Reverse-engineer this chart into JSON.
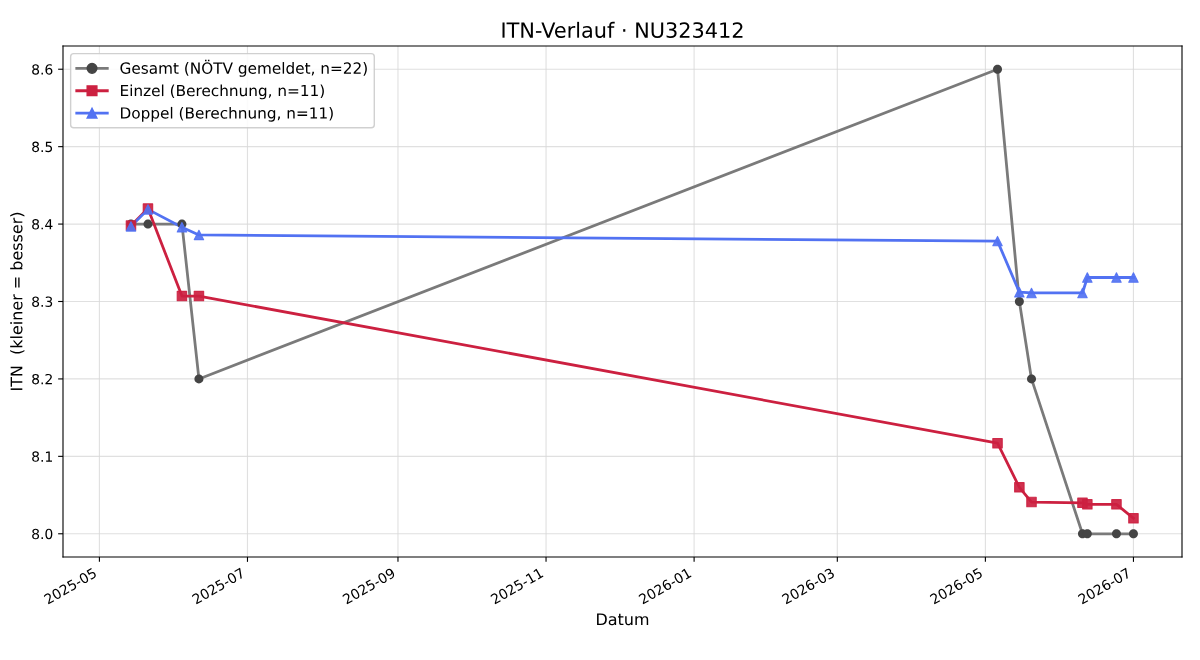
{
  "chart_data": {
    "type": "line",
    "title": "ITN-Verlauf · NU323412",
    "xlabel": "Datum",
    "ylabel": "ITN  (kleiner = besser)",
    "series": [
      {
        "name": "Gesamt (NÖTV gemeldet, n=22)",
        "color": "#7a7a7a",
        "colors": [
          "#444444",
          "#444444",
          "#444444",
          "#444444",
          "#444444",
          "#444444",
          "#444444",
          "#444444",
          "#444444",
          "#444444",
          "#444444"
        ],
        "marker": "circle",
        "x": [
          "2025-05-14",
          "2025-05-21",
          "2025-06-04",
          "2025-06-11",
          "2026-05-06",
          "2026-05-15",
          "2026-05-20",
          "2026-06-10",
          "2026-06-12",
          "2026-06-24",
          "2026-07-01"
        ],
        "values": [
          8.4,
          8.4,
          8.4,
          8.2,
          8.6,
          8.3,
          8.2,
          8.0,
          8.0,
          8.0,
          8.0
        ]
      },
      {
        "name": "Einzel (Berechnung, n=11)",
        "color": "#cc2040",
        "marker": "square",
        "x": [
          "2025-05-14",
          "2025-05-21",
          "2025-06-04",
          "2025-06-11",
          "2026-05-06",
          "2026-05-15",
          "2026-05-20",
          "2026-06-10",
          "2026-06-12",
          "2026-06-24",
          "2026-07-01"
        ],
        "values": [
          8.398,
          8.42,
          8.307,
          8.307,
          8.117,
          8.06,
          8.041,
          8.04,
          8.038,
          8.038,
          8.02
        ]
      },
      {
        "name": "Doppel (Berechnung, n=11)",
        "color": "#5272f2",
        "marker": "triangle",
        "x": [
          "2025-05-14",
          "2025-05-21",
          "2025-06-04",
          "2025-06-11",
          "2026-05-06",
          "2026-05-15",
          "2026-05-20",
          "2026-06-10",
          "2026-06-12",
          "2026-06-24",
          "2026-07-01"
        ],
        "values": [
          8.397,
          8.419,
          8.396,
          8.386,
          8.378,
          8.312,
          8.311,
          8.311,
          8.331,
          8.331,
          8.331
        ]
      }
    ],
    "xlim": [
      "2025-04-16",
      "2026-07-21"
    ],
    "xticks": [
      {
        "value": "2025-05",
        "label": "2025-05"
      },
      {
        "value": "2025-07",
        "label": "2025-07"
      },
      {
        "value": "2025-09",
        "label": "2025-09"
      },
      {
        "value": "2025-11",
        "label": "2025-11"
      },
      {
        "value": "2026-01",
        "label": "2026-01"
      },
      {
        "value": "2026-03",
        "label": "2026-03"
      },
      {
        "value": "2026-05",
        "label": "2026-05"
      },
      {
        "value": "2026-07",
        "label": "2026-07"
      }
    ],
    "ylim": [
      7.97,
      8.63
    ],
    "yticks": [
      {
        "value": 8,
        "label": "8.0"
      },
      8.1,
      8.2,
      8.3,
      8.4,
      8.5,
      8.6
    ],
    "grid": true,
    "legend": "top left"
  }
}
